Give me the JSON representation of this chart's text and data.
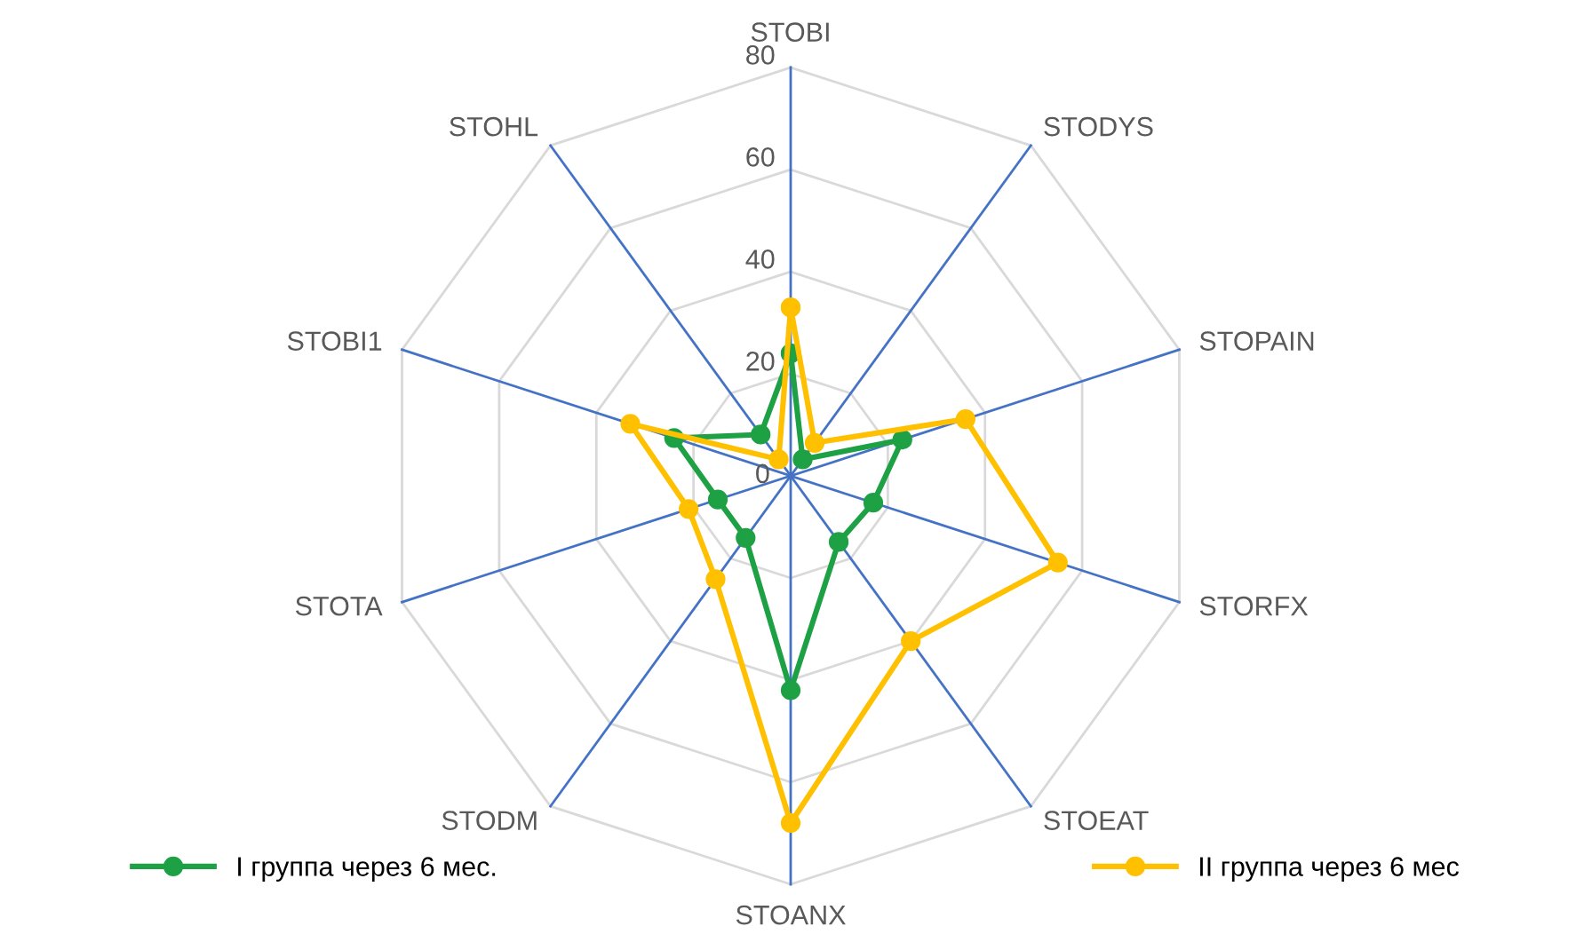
{
  "chart_data": {
    "type": "radar",
    "categories": [
      "STOBI",
      "STODYS",
      "STOPAIN",
      "STORFX",
      "STOEAT",
      "STOANX",
      "STODM",
      "STOTA",
      "STOBI1",
      "STOHL"
    ],
    "ylim": [
      0,
      80
    ],
    "yticks": [
      0,
      20,
      40,
      60,
      80
    ],
    "grid": true,
    "legend": "bottom",
    "marker": "circle",
    "line_style": "solid",
    "series": [
      {
        "name": "I группа через 6 мес.",
        "color": "#1ea044",
        "values": [
          24,
          4,
          23,
          17,
          16,
          42,
          15,
          15,
          24,
          10
        ]
      },
      {
        "name": "II группа через 6 мес",
        "color": "#ffc000",
        "values": [
          33,
          8,
          36,
          55,
          40,
          68,
          25,
          21,
          33,
          4
        ]
      }
    ]
  }
}
